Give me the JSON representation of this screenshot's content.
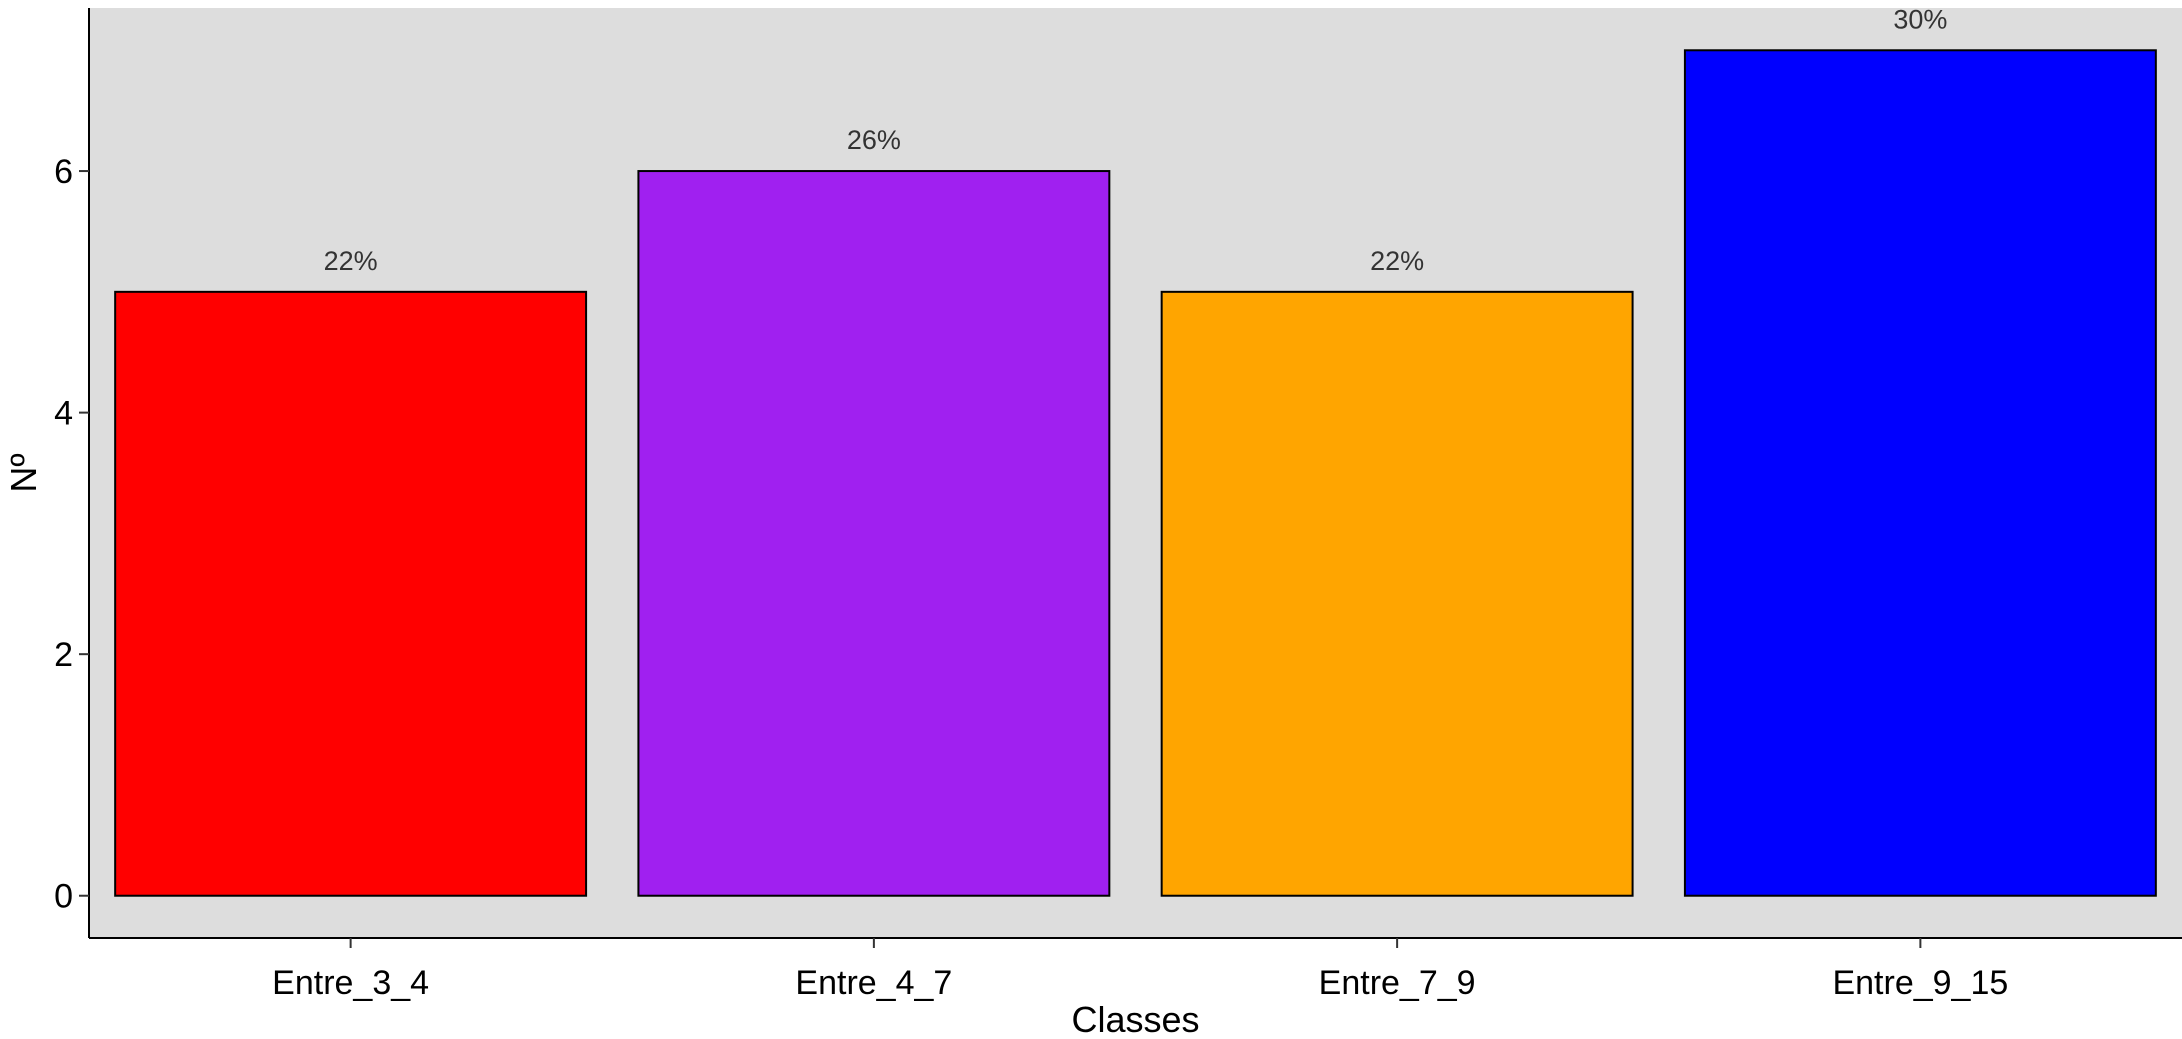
{
  "chart_data": {
    "type": "bar",
    "title": "",
    "xlabel": "Classes",
    "ylabel": "Nº",
    "categories": [
      "Entre_3_4",
      "Entre_4_7",
      "Entre_7_9",
      "Entre_9_15"
    ],
    "values": [
      5,
      6,
      5,
      7
    ],
    "data_labels": [
      "22%",
      "26%",
      "22%",
      "30%"
    ],
    "bar_colors": [
      "#ff0000",
      "#a020f0",
      "#ffa500",
      "#0000ff"
    ],
    "ylim": [
      -0.35,
      7.35
    ],
    "yticks": [
      0,
      2,
      4,
      6
    ],
    "ytick_labels": [
      "0",
      "2",
      "4",
      "6"
    ],
    "grid": false,
    "legend": "none",
    "panel_background": "#dddddd",
    "bar_outline": "#000000"
  }
}
